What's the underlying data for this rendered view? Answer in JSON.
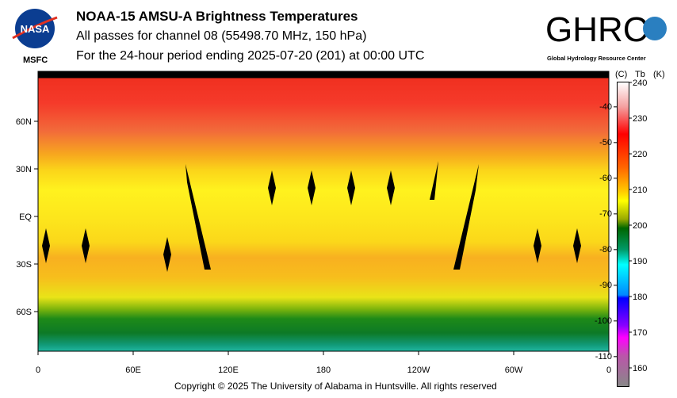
{
  "header": {
    "title": "NOAA-15 AMSU-A Brightness Temperatures",
    "subtitle1": "All passes for channel 08 (55498.70 MHz, 150 hPa)",
    "subtitle2": "For the 24-hour period ending 2025-07-20 (201) at 00:00 UTC",
    "nasa_logo_text": "NASA",
    "msfc": "MSFC",
    "ghrc_logo_text": "GHRC",
    "ghrc_name": "Global Hydrology Resource Center"
  },
  "chart_data": {
    "type": "heatmap",
    "title": "NOAA-15 AMSU-A Brightness Temperatures",
    "x_ticks": [
      "0",
      "60E",
      "120E",
      "180",
      "120W",
      "60W",
      "0"
    ],
    "y_ticks": [
      "60N",
      "30N",
      "EQ",
      "30S",
      "60S"
    ],
    "colorbar": {
      "label_c": "(C)",
      "label_tb": "Tb",
      "label_k": "(K)",
      "range_k": [
        155,
        240
      ],
      "k_ticks": [
        "240",
        "230",
        "220",
        "210",
        "200",
        "190",
        "180",
        "170",
        "160"
      ],
      "c_ticks": [
        "-40",
        "-50",
        "-60",
        "-70",
        "-80",
        "-90",
        "-100",
        "-110"
      ]
    },
    "zonal_pattern_k": [
      {
        "lat": "90N-60N",
        "tb": 230
      },
      {
        "lat": "30N-30S",
        "tb": 218
      },
      {
        "lat": "40S",
        "tb": 224
      },
      {
        "lat": "65S-90S",
        "tb": 200
      }
    ]
  },
  "footer": {
    "copyright": "Copyright © 2025 The University of Alabama in Huntsville.  All rights reserved"
  }
}
